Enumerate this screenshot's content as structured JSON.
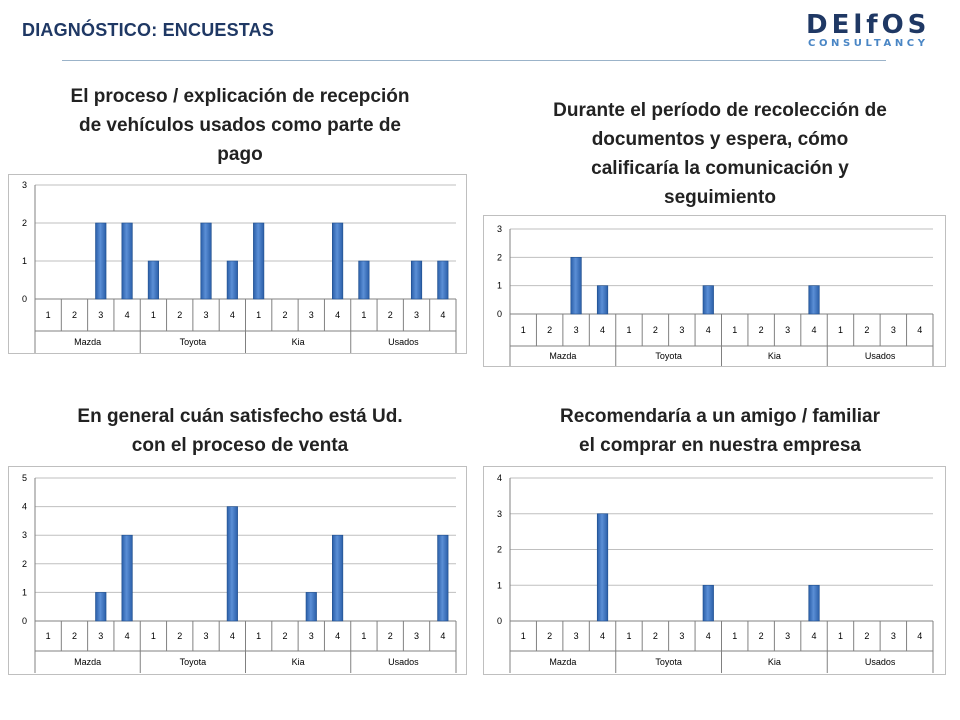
{
  "header": {
    "title": "DIAGNÓSTICO:  ENCUESTAS"
  },
  "logo": {
    "main": "DElfOS",
    "sub": "CONSULTANCY"
  },
  "colors": {
    "bar": "#2a5ea8",
    "bar_light": "#5b8fd6",
    "title": "#1f3864",
    "logo_accent": "#4a86c5"
  },
  "chart_data": [
    {
      "type": "bar",
      "title": "El proceso / explicación de recepción de vehículos usados como parte de pago",
      "title_lines": [
        "El proceso / explicación de recepción",
        "de vehículos usados como parte de",
        "pago"
      ],
      "categories": [
        "1",
        "2",
        "3",
        "4",
        "1",
        "2",
        "3",
        "4",
        "1",
        "2",
        "3",
        "4",
        "1",
        "2",
        "3",
        "4"
      ],
      "groups": [
        "Mazda",
        "Toyota",
        "Kia",
        "Usados"
      ],
      "values": [
        0,
        0,
        2,
        2,
        1,
        0,
        2,
        1,
        2,
        0,
        0,
        2,
        1,
        0,
        1,
        1
      ],
      "ylim": [
        0,
        3
      ],
      "yticks": [
        "0",
        "1",
        "2",
        "3"
      ],
      "grid": true
    },
    {
      "type": "bar",
      "title": "Durante el período de recolección de documentos y espera, cómo calificaría la comunicación y seguimiento",
      "title_lines": [
        "Durante el período de recolección de",
        "documentos y espera, cómo",
        "calificaría la comunicación y",
        "seguimiento"
      ],
      "categories": [
        "1",
        "2",
        "3",
        "4",
        "1",
        "2",
        "3",
        "4",
        "1",
        "2",
        "3",
        "4",
        "1",
        "2",
        "3",
        "4"
      ],
      "groups": [
        "Mazda",
        "Toyota",
        "Kia",
        "Usados"
      ],
      "values": [
        0,
        0,
        2,
        1,
        0,
        0,
        0,
        1,
        0,
        0,
        0,
        1,
        0,
        0,
        0,
        0
      ],
      "ylim": [
        0,
        3
      ],
      "yticks": [
        "0",
        "1",
        "2",
        "3"
      ],
      "grid": true
    },
    {
      "type": "bar",
      "title": "En general cuán satisfecho está Ud. con el proceso de venta",
      "title_lines": [
        "En general cuán satisfecho está Ud.",
        "con el proceso de venta"
      ],
      "categories": [
        "1",
        "2",
        "3",
        "4",
        "1",
        "2",
        "3",
        "4",
        "1",
        "2",
        "3",
        "4",
        "1",
        "2",
        "3",
        "4"
      ],
      "groups": [
        "Mazda",
        "Toyota",
        "Kia",
        "Usados"
      ],
      "values": [
        0,
        0,
        1,
        3,
        0,
        0,
        0,
        4,
        0,
        0,
        1,
        3,
        0,
        0,
        0,
        3
      ],
      "ylim": [
        0,
        5
      ],
      "yticks": [
        "0",
        "1",
        "2",
        "3",
        "4",
        "5"
      ],
      "grid": true
    },
    {
      "type": "bar",
      "title": "Recomendaría a un amigo / familiar el comprar en nuestra empresa",
      "title_lines": [
        "Recomendaría a un amigo / familiar",
        "el comprar en nuestra empresa"
      ],
      "categories": [
        "1",
        "2",
        "3",
        "4",
        "1",
        "2",
        "3",
        "4",
        "1",
        "2",
        "3",
        "4",
        "1",
        "2",
        "3",
        "4"
      ],
      "groups": [
        "Mazda",
        "Toyota",
        "Kia",
        "Usados"
      ],
      "values": [
        0,
        0,
        0,
        3,
        0,
        0,
        0,
        1,
        0,
        0,
        0,
        1,
        0,
        0,
        0,
        0
      ],
      "ylim": [
        0,
        4
      ],
      "yticks": [
        "0",
        "1",
        "2",
        "3",
        "4"
      ],
      "grid": true
    }
  ]
}
